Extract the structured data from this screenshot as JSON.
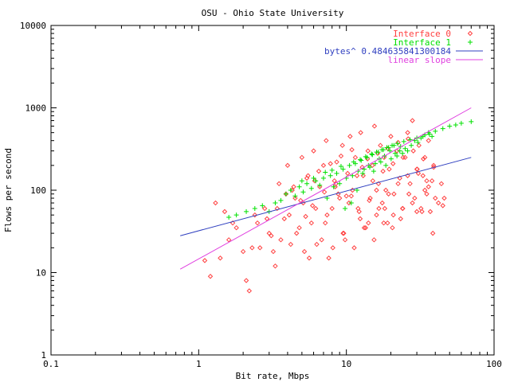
{
  "chart_data": {
    "type": "scatter",
    "title": "OSU - Ohio State University",
    "xlabel": "Bit rate, Mbps",
    "ylabel": "Flows per second",
    "xscale": "log",
    "yscale": "log",
    "xlim": [
      0.1,
      100
    ],
    "ylim": [
      1,
      10000
    ],
    "x_ticks": [
      {
        "value": 0.1,
        "label": "0.1"
      },
      {
        "value": 1,
        "label": "1"
      },
      {
        "value": 10,
        "label": "10"
      },
      {
        "value": 100,
        "label": "100"
      }
    ],
    "y_ticks": [
      {
        "value": 1,
        "label": "1"
      },
      {
        "value": 10,
        "label": "10"
      },
      {
        "value": 100,
        "label": "100"
      },
      {
        "value": 1000,
        "label": "1000"
      },
      {
        "value": 10000,
        "label": "10000"
      }
    ],
    "grid": false,
    "legend_position": "top-right",
    "series": [
      {
        "name": "Interface 0",
        "kind": "points",
        "marker": "diamond",
        "color": "#ff4040",
        "x": [
          1.2,
          1.4,
          1.5,
          1.6,
          1.8,
          2.0,
          2.2,
          2.5,
          2.8,
          3.0,
          3.2,
          3.5,
          3.8,
          4.0,
          4.2,
          4.5,
          4.8,
          5.0,
          5.2,
          5.5,
          5.8,
          6.0,
          6.3,
          6.6,
          7.0,
          7.3,
          7.6,
          8.0,
          8.3,
          8.6,
          9.0,
          9.4,
          9.8,
          10.2,
          10.6,
          11.0,
          11.5,
          12.0,
          12.5,
          13.0,
          13.5,
          14.0,
          14.5,
          15.0,
          15.5,
          16.0,
          16.5,
          17.0,
          17.5,
          18.0,
          18.5,
          19.0,
          19.5,
          20.0,
          21.0,
          22.0,
          23.0,
          24.0,
          25.0,
          26.0,
          27.0,
          28.0,
          29.0,
          30.0,
          31.0,
          32.0,
          33.0,
          34.0,
          35.0,
          36.0,
          37.0,
          38.0,
          39.0,
          40.0,
          42.0,
          44.0,
          46.0,
          2.1,
          2.6,
          3.3,
          3.6,
          4.1,
          4.6,
          5.1,
          5.6,
          6.2,
          6.8,
          7.4,
          8.1,
          8.8,
          9.6,
          10.4,
          11.3,
          12.2,
          13.2,
          14.3,
          15.4,
          16.6,
          17.9,
          19.3,
          20.8,
          22.4,
          24.1,
          26.0,
          28.0,
          30.2,
          32.5,
          35.0,
          1.3,
          1.7,
          2.3,
          2.9,
          3.4,
          3.9,
          4.4,
          4.9,
          5.4,
          5.9,
          6.5,
          7.1,
          7.8,
          8.5,
          9.2,
          10.0,
          10.9,
          11.8,
          12.8,
          13.9,
          15.1,
          16.3,
          17.7,
          19.1,
          20.7,
          22.4,
          24.2,
          26.2,
          28.4,
          30.7,
          33.2,
          36.0,
          39.0,
          1.1,
          2.4,
          3.1,
          4.3,
          5.3,
          6.1,
          7.2,
          8.4,
          9.5,
          10.8,
          12.4,
          14.1,
          16.0,
          18.2,
          20.5,
          23.3,
          26.5,
          30.0,
          34.0,
          38.5,
          45.0
        ],
        "y": [
          9,
          15,
          55,
          25,
          35,
          18,
          6,
          40,
          60,
          30,
          18,
          120,
          45,
          200,
          22,
          80,
          35,
          250,
          18,
          150,
          40,
          300,
          22,
          110,
          200,
          400,
          15,
          60,
          130,
          220,
          80,
          350,
          25,
          160,
          450,
          100,
          250,
          60,
          500,
          150,
          35,
          300,
          80,
          200,
          600,
          50,
          120,
          350,
          70,
          250,
          100,
          40,
          180,
          450,
          90,
          300,
          140,
          60,
          250,
          500,
          120,
          700,
          80,
          180,
          350,
          60,
          150,
          250,
          90,
          400,
          55,
          130,
          200,
          80,
          70,
          120,
          80,
          8,
          20,
          12,
          25,
          50,
          30,
          70,
          15,
          60,
          25,
          50,
          20,
          90,
          30,
          70,
          20,
          55,
          35,
          75,
          25,
          60,
          40,
          90,
          50,
          120,
          60,
          150,
          70,
          180,
          55,
          130,
          70,
          40,
          20,
          45,
          60,
          90,
          110,
          75,
          140,
          65,
          170,
          95,
          210,
          120,
          260,
          85,
          310,
          150,
          190,
          240,
          130,
          280,
          170,
          320,
          210,
          380,
          250,
          420,
          300,
          160,
          240,
          110,
          190,
          14,
          50,
          28,
          100,
          48,
          130,
          40,
          110,
          30,
          85,
          45,
          40,
          100,
          60,
          35,
          45,
          90,
          55,
          100,
          30,
          65
        ]
      },
      {
        "name": "Interface 1",
        "kind": "points",
        "marker": "plus",
        "color": "#00e000",
        "x": [
          1.6,
          1.8,
          2.1,
          2.4,
          2.7,
          3.0,
          3.3,
          3.6,
          3.9,
          4.2,
          4.5,
          4.8,
          5.1,
          5.4,
          5.8,
          6.2,
          6.6,
          7.0,
          7.4,
          7.8,
          8.2,
          8.6,
          9.0,
          9.5,
          10.0,
          10.5,
          11.0,
          11.5,
          12.0,
          12.6,
          13.2,
          13.8,
          14.4,
          15.0,
          15.7,
          16.4,
          17.1,
          17.8,
          18.5,
          19.3,
          20.1,
          21.0,
          22.0,
          23.0,
          24.0,
          25.0,
          26.0,
          27.5,
          29.0,
          30.5,
          32.0,
          34.0,
          36.0,
          38.0,
          40.0,
          45.0,
          50.0,
          55.0,
          60.0,
          70.0,
          5.0,
          6.0,
          7.2,
          8.0,
          9.2,
          11.2,
          12.4,
          13.5,
          14.8,
          16.0,
          17.4,
          18.8,
          20.4,
          22.2,
          24.5,
          27.0,
          30.0,
          33.0,
          36.5,
          9.8,
          10.8,
          11.8,
          12.9,
          14.1,
          15.3,
          16.7,
          18.1,
          19.7,
          21.4,
          23.3
        ],
        "y": [
          47,
          50,
          55,
          60,
          65,
          55,
          70,
          75,
          90,
          100,
          85,
          110,
          95,
          120,
          105,
          130,
          115,
          140,
          80,
          150,
          110,
          160,
          120,
          180,
          140,
          200,
          150,
          210,
          170,
          230,
          180,
          250,
          190,
          270,
          210,
          290,
          220,
          310,
          200,
          330,
          240,
          350,
          260,
          300,
          280,
          320,
          300,
          350,
          400,
          380,
          430,
          470,
          500,
          450,
          520,
          560,
          600,
          620,
          650,
          680,
          130,
          140,
          165,
          175,
          195,
          220,
          235,
          255,
          275,
          290,
          310,
          330,
          350,
          370,
          390,
          410,
          430,
          450,
          480,
          60,
          70,
          100,
          160,
          200,
          170,
          240,
          260,
          300,
          280,
          340
        ]
      },
      {
        "name": "bytes^ 0.484635841300184",
        "kind": "line",
        "color": "#3040c0",
        "x": [
          0.75,
          70
        ],
        "y": [
          28,
          250
        ]
      },
      {
        "name": "linear slope",
        "kind": "line",
        "color": "#e040e0",
        "x": [
          0.75,
          70
        ],
        "y": [
          11,
          1000
        ]
      }
    ]
  }
}
